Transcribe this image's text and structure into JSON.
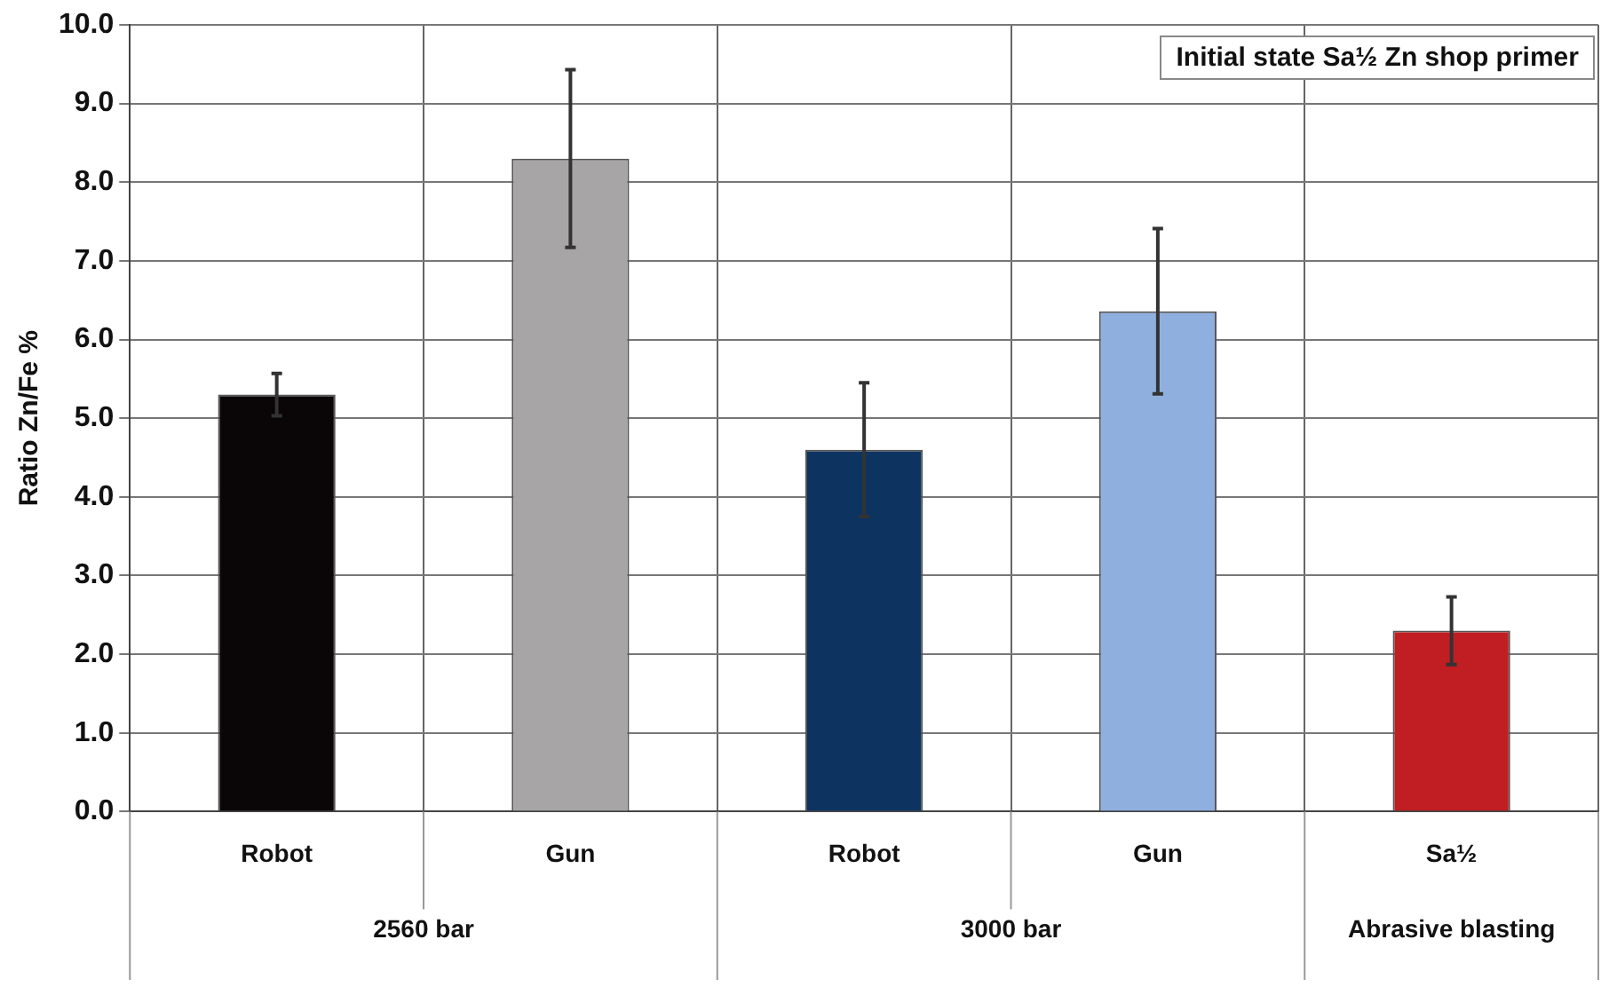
{
  "chart_data": {
    "type": "bar",
    "title": "Initial state Sa½ Zn shop primer",
    "ylabel": "Ratio Zn/Fe %",
    "categories": [
      "Robot",
      "Gun",
      "Robot",
      "Gun",
      "Sa½"
    ],
    "values": [
      5.3,
      8.3,
      4.6,
      6.36,
      2.3
    ],
    "colors": [
      "#0a0506",
      "#a7a5a6",
      "#0d3361",
      "#8fb0de",
      "#c01e22"
    ],
    "errors": [
      0.27,
      1.13,
      0.85,
      1.05,
      0.43
    ],
    "annotations": [
      "2560 bar",
      "3000 bar",
      "Abrasive blasting"
    ],
    "ylim": [
      0,
      10
    ],
    "yticks": [
      {
        "value": 0,
        "label": "0.0"
      },
      {
        "value": 1,
        "label": "1.0"
      },
      {
        "value": 2,
        "label": "2.0"
      },
      {
        "value": 3,
        "label": "3.0"
      },
      {
        "value": 4,
        "label": "4.0"
      },
      {
        "value": 5,
        "label": "5.0"
      },
      {
        "value": 6,
        "label": "6.0"
      },
      {
        "value": 7,
        "label": "7.0"
      },
      {
        "value": 8,
        "label": "8.0"
      },
      {
        "value": 9,
        "label": "9.0"
      },
      {
        "value": 10,
        "label": "10.0"
      }
    ],
    "grid": true,
    "legend": false
  }
}
